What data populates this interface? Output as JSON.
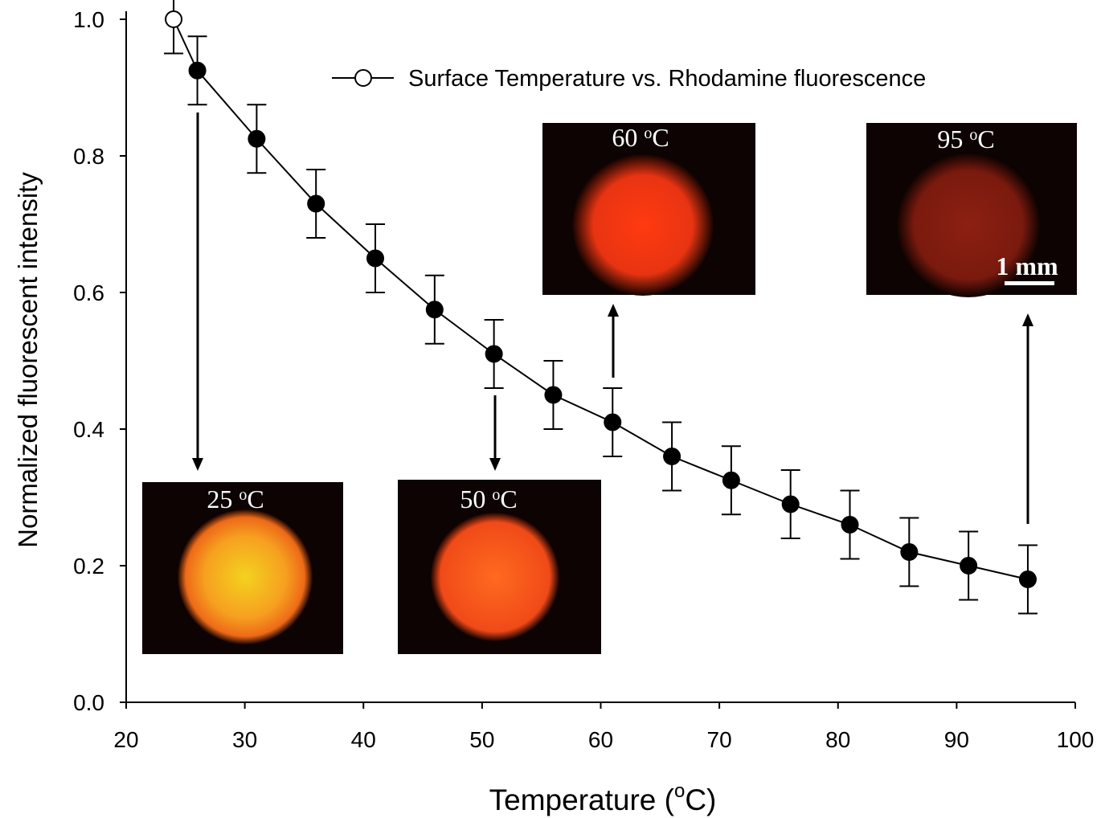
{
  "chart_data": {
    "type": "line",
    "x": [
      24,
      26,
      31,
      36,
      41,
      46,
      51,
      56,
      61,
      66,
      71,
      76,
      81,
      86,
      91,
      96
    ],
    "series": [
      {
        "name": "Surface Temperature vs. Rhodamine fluorescence",
        "color": "#000000",
        "values": [
          1.0,
          0.925,
          0.825,
          0.73,
          0.65,
          0.575,
          0.51,
          0.45,
          0.41,
          0.36,
          0.325,
          0.29,
          0.26,
          0.22,
          0.2,
          0.18
        ],
        "errors": [
          0.05,
          0.05,
          0.05,
          0.05,
          0.05,
          0.05,
          0.05,
          0.05,
          0.05,
          0.05,
          0.05,
          0.05,
          0.05,
          0.05,
          0.05,
          0.05
        ],
        "marker_fills": [
          "#ffffff",
          "#000000",
          "#000000",
          "#000000",
          "#000000",
          "#000000",
          "#000000",
          "#000000",
          "#000000",
          "#000000",
          "#000000",
          "#000000",
          "#000000",
          "#000000",
          "#000000",
          "#000000"
        ]
      }
    ],
    "xlim": [
      20,
      100
    ],
    "xticks": [
      20,
      30,
      40,
      50,
      60,
      70,
      80,
      90,
      100
    ],
    "ylim": [
      0,
      1
    ],
    "yticks": [
      {
        "value": 0,
        "label": "0.0"
      },
      0.2,
      0.4,
      0.6,
      0.8,
      {
        "value": 1,
        "label": "1.0"
      }
    ],
    "x_label": [
      "Temperature (",
      "o",
      "C)"
    ],
    "y_label": "Normalized fluorescent intensity",
    "insets": [
      {
        "label": [
          "25 ",
          "o",
          "C"
        ]
      },
      {
        "label": [
          "50 ",
          "o",
          "C"
        ]
      },
      {
        "label": [
          "60 ",
          "o",
          "C"
        ]
      },
      {
        "label": [
          "95 ",
          "o",
          "C"
        ]
      }
    ],
    "scale_bar": "1 mm"
  }
}
